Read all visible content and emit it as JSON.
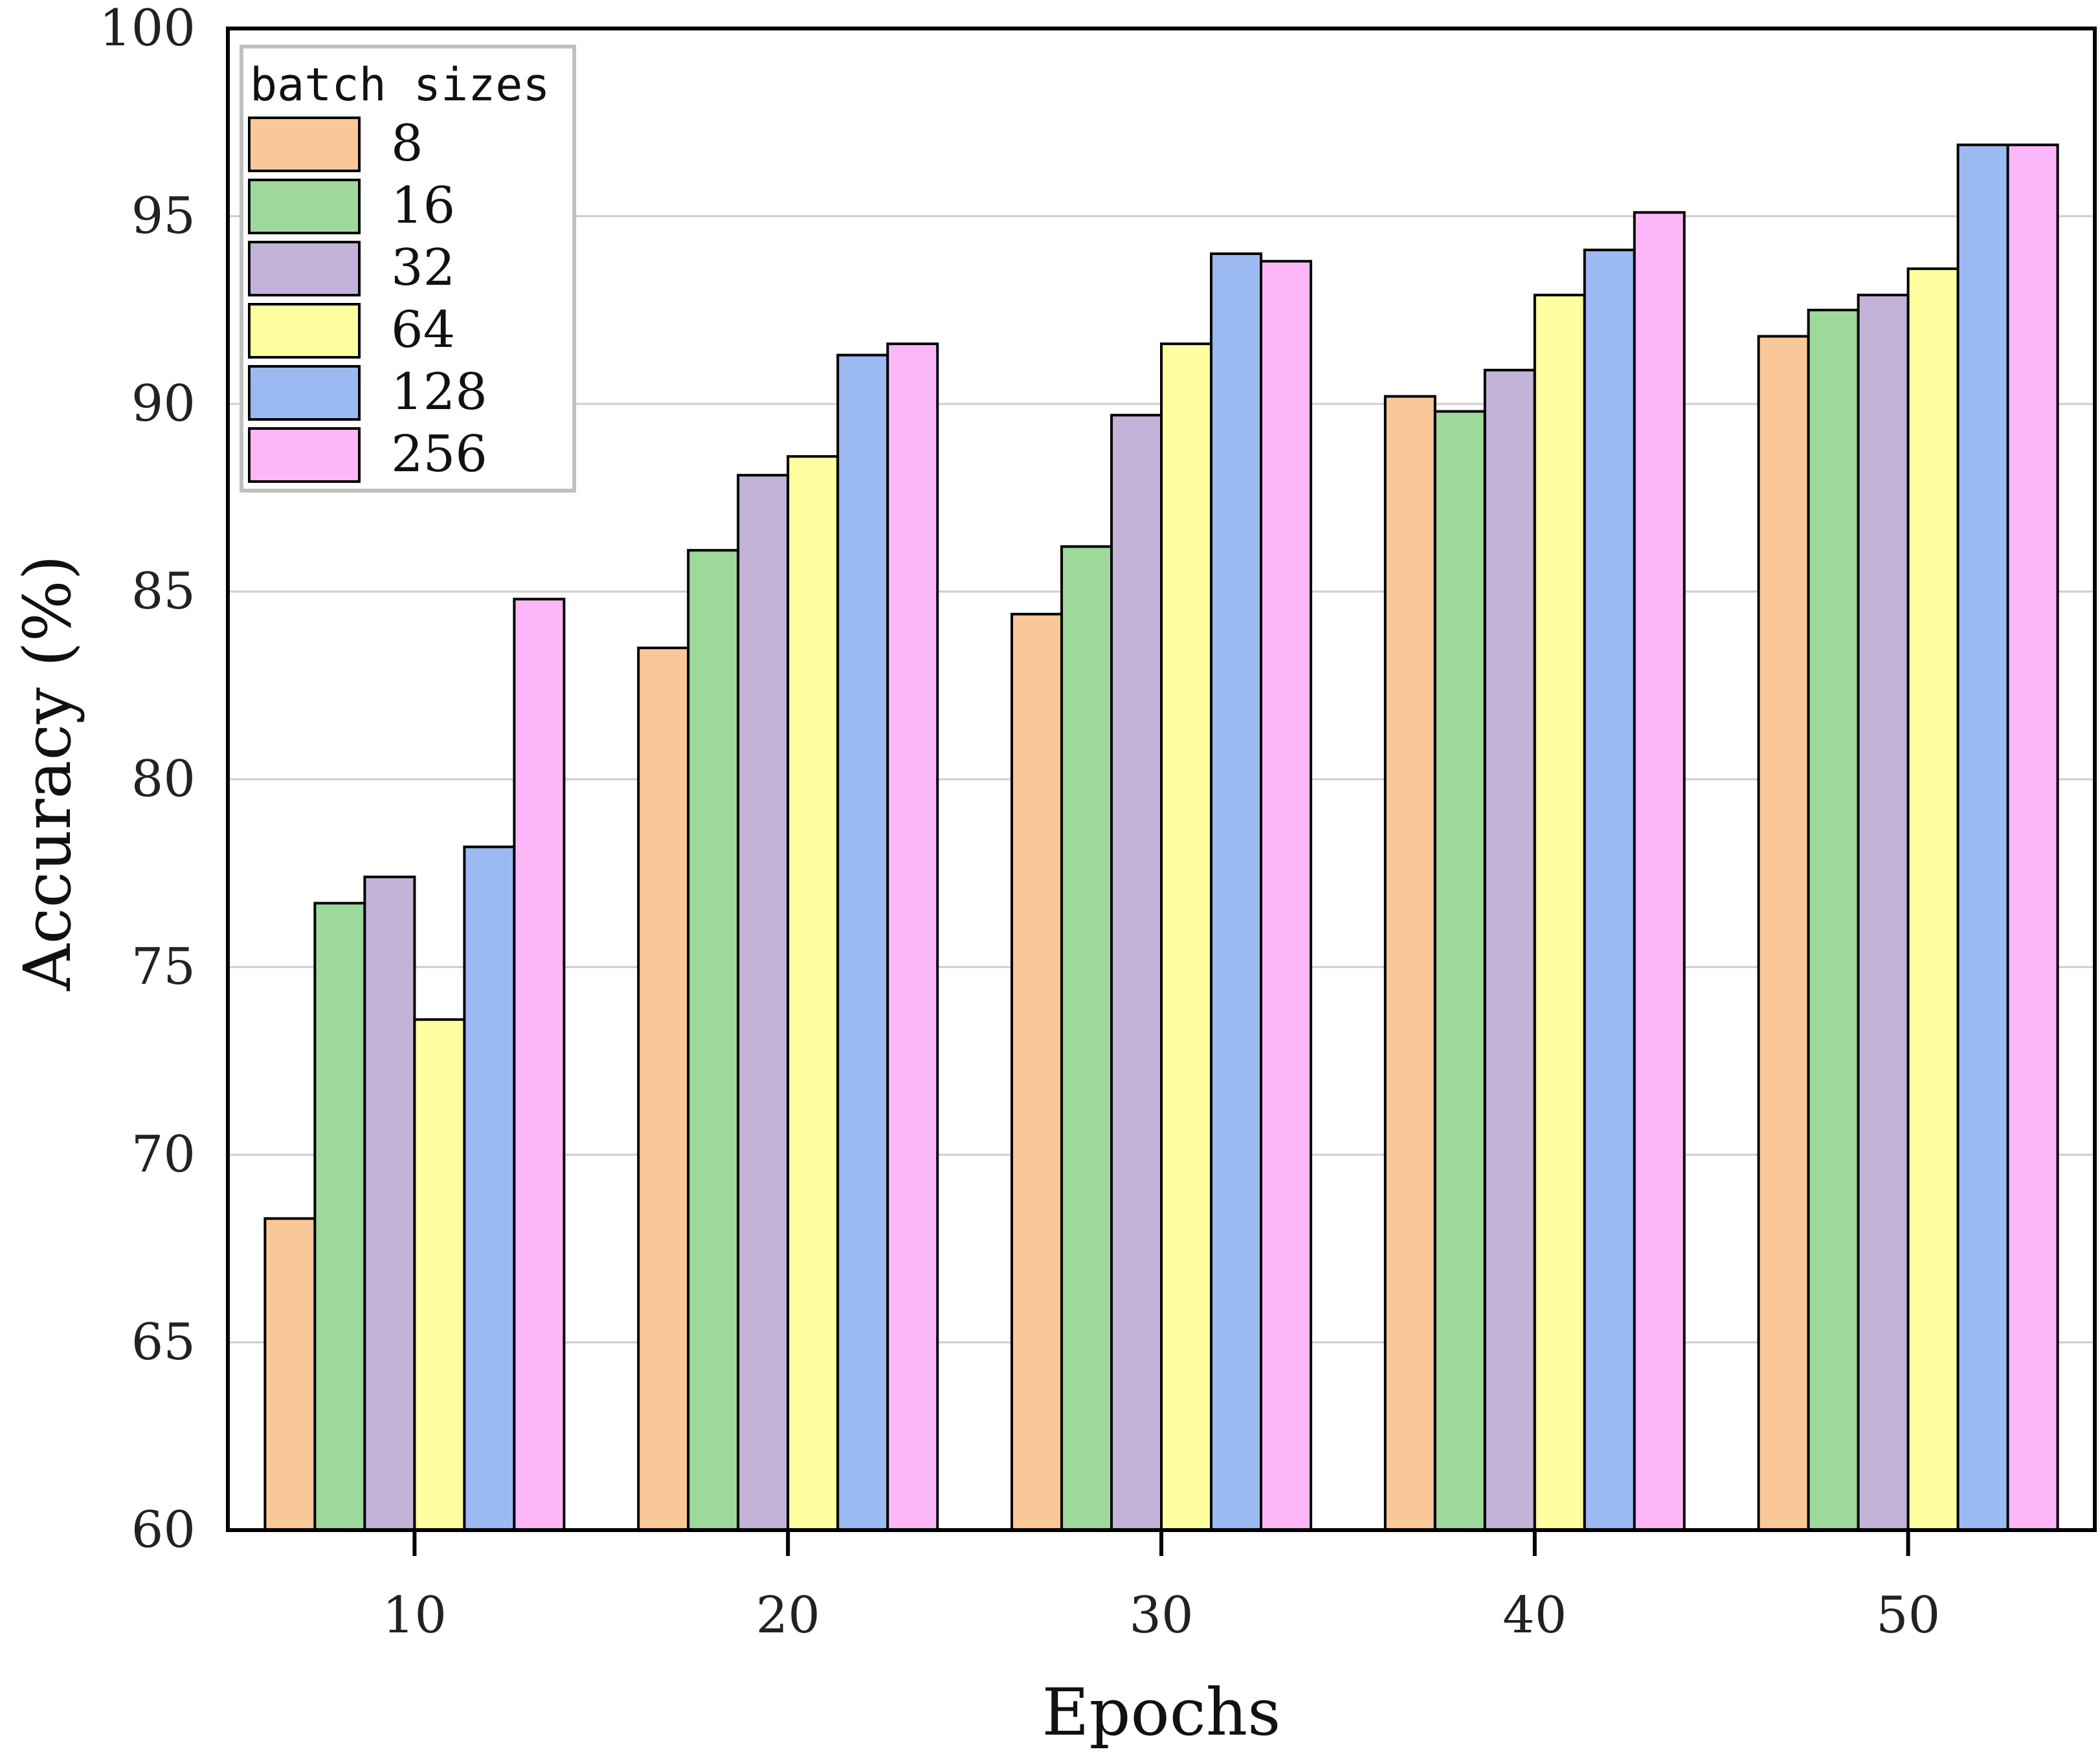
{
  "chart_data": {
    "type": "bar",
    "title": "",
    "xlabel": "Epochs",
    "ylabel": "Accuracy (%)",
    "ylim": [
      60,
      100
    ],
    "yticks": [
      "60",
      "65",
      "70",
      "75",
      "80",
      "85",
      "90",
      "95",
      "100"
    ],
    "categories": [
      "10",
      "20",
      "30",
      "40",
      "50"
    ],
    "legend": {
      "title": "batch sizes",
      "position": "top-left"
    },
    "grid": "horizontal",
    "series": [
      {
        "name": "8",
        "color": "#fac898",
        "values": [
          68.3,
          83.5,
          84.4,
          90.2,
          91.8
        ]
      },
      {
        "name": "16",
        "color": "#9ed89b",
        "values": [
          76.7,
          86.1,
          86.2,
          89.8,
          92.5
        ]
      },
      {
        "name": "32",
        "color": "#c3b3d8",
        "values": [
          77.4,
          88.1,
          89.7,
          90.9,
          92.9
        ]
      },
      {
        "name": "64",
        "color": "#ffff9f",
        "values": [
          73.6,
          88.6,
          91.6,
          92.9,
          93.6
        ]
      },
      {
        "name": "128",
        "color": "#9cbaf2",
        "values": [
          78.2,
          91.3,
          94.0,
          94.1,
          96.9
        ]
      },
      {
        "name": "256",
        "color": "#fdb7f8",
        "values": [
          84.8,
          91.6,
          93.8,
          95.1,
          96.9
        ]
      }
    ]
  }
}
